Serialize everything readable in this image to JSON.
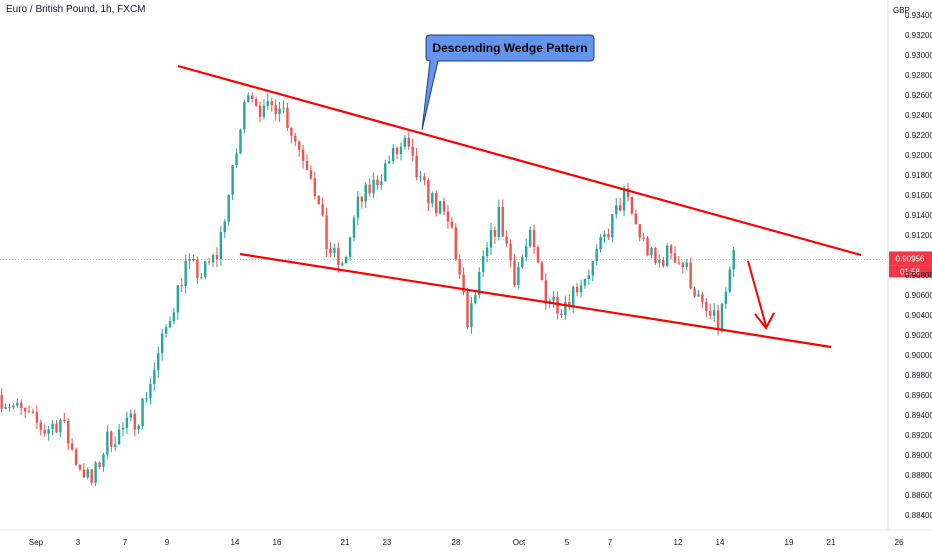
{
  "header": {
    "symbol_title": "Euro / British Pound, 1h, FXCM",
    "currency": "GBP"
  },
  "chart_data": {
    "type": "candlestick",
    "title": "Descending Wedge Pattern",
    "x_tick_labels": [
      "Sep",
      "3",
      "7",
      "9",
      "14",
      "16",
      "21",
      "23",
      "28",
      "Oct",
      "5",
      "7",
      "12",
      "14",
      "19",
      "21",
      "26"
    ],
    "y_tick_labels": [
      "0.88400",
      "0.88600",
      "0.88800",
      "0.89000",
      "0.89200",
      "0.89400",
      "0.89600",
      "0.89800",
      "0.90000",
      "0.90200",
      "0.90400",
      "0.90600",
      "0.90800",
      "0.91200",
      "0.91400",
      "0.91600",
      "0.91800",
      "0.92000",
      "0.92200",
      "0.92400",
      "0.92600",
      "0.92800",
      "0.93000",
      "0.93200",
      "0.93400"
    ],
    "ylim": [
      0.8832,
      0.935
    ],
    "last_price": "0.90956",
    "countdown": "01:58",
    "colors": {
      "up": "#26a69a",
      "down": "#ef5350",
      "trendline": "#ff0000",
      "callout_fill": "#6495ed",
      "price_label": "#f23645",
      "axis_text": "#131722"
    },
    "annotations": {
      "callout_text": "Descending Wedge Pattern",
      "upper_trendline": [
        [
          "Aug 29",
          0.928
        ],
        [
          "Oct 24",
          0.91
        ]
      ],
      "lower_trendline": [
        [
          "Sep 13",
          0.91
        ],
        [
          "Oct 22",
          0.9005
        ]
      ],
      "arrow": "down"
    },
    "price_path": [
      {
        "date": "Aug 29",
        "price": 0.896
      },
      {
        "date": "Sep 1",
        "price": 0.8925
      },
      {
        "date": "Sep 2",
        "price": 0.8935
      },
      {
        "date": "Sep 3",
        "price": 0.8895
      },
      {
        "date": "Sep 4",
        "price": 0.8872
      },
      {
        "date": "Sep 5",
        "price": 0.8915
      },
      {
        "date": "Sep 6",
        "price": 0.8925
      },
      {
        "date": "Sep 7",
        "price": 0.894
      },
      {
        "date": "Sep 8",
        "price": 0.8985
      },
      {
        "date": "Sep 9",
        "price": 0.904
      },
      {
        "date": "Sep 10",
        "price": 0.909
      },
      {
        "date": "Sep 11",
        "price": 0.908
      },
      {
        "date": "Sep 12",
        "price": 0.91
      },
      {
        "date": "Sep 13",
        "price": 0.918
      },
      {
        "date": "Sep 14",
        "price": 0.927
      },
      {
        "date": "Sep 15",
        "price": 0.924
      },
      {
        "date": "Sep 16",
        "price": 0.9255
      },
      {
        "date": "Sep 17",
        "price": 0.9215
      },
      {
        "date": "Sep 18",
        "price": 0.9185
      },
      {
        "date": "Sep 19",
        "price": 0.911
      },
      {
        "date": "Sep 20",
        "price": 0.9085
      },
      {
        "date": "Sep 21",
        "price": 0.915
      },
      {
        "date": "Sep 22",
        "price": 0.917
      },
      {
        "date": "Sep 23",
        "price": 0.9195
      },
      {
        "date": "Sep 24",
        "price": 0.921
      },
      {
        "date": "Sep 25",
        "price": 0.917
      },
      {
        "date": "Sep 26",
        "price": 0.915
      },
      {
        "date": "Sep 27",
        "price": 0.9125
      },
      {
        "date": "Sep 28",
        "price": 0.903
      },
      {
        "date": "Sep 29",
        "price": 0.909
      },
      {
        "date": "Sep 30",
        "price": 0.914
      },
      {
        "date": "Oct 1",
        "price": 0.908
      },
      {
        "date": "Oct 2",
        "price": 0.9115
      },
      {
        "date": "Oct 3",
        "price": 0.906
      },
      {
        "date": "Oct 4",
        "price": 0.905
      },
      {
        "date": "Oct 5",
        "price": 0.907
      },
      {
        "date": "Oct 6",
        "price": 0.909
      },
      {
        "date": "Oct 7",
        "price": 0.9125
      },
      {
        "date": "Oct 8",
        "price": 0.916
      },
      {
        "date": "Oct 9",
        "price": 0.912
      },
      {
        "date": "Oct 10",
        "price": 0.909
      },
      {
        "date": "Oct 11",
        "price": 0.9105
      },
      {
        "date": "Oct 12",
        "price": 0.9085
      },
      {
        "date": "Oct 13",
        "price": 0.9045
      },
      {
        "date": "Oct 14",
        "price": 0.903
      },
      {
        "date": "Oct 15",
        "price": 0.9095
      }
    ]
  }
}
